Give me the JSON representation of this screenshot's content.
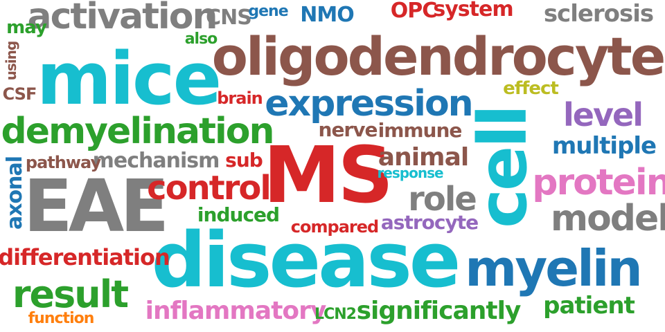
{
  "colors": {
    "brown": "#8c564b",
    "cyan": "#17becf",
    "red": "#d62728",
    "blue": "#1f77b4",
    "green": "#2ca02c",
    "gray": "#7f7f7f",
    "purple": "#9467bd",
    "pink": "#e377c2",
    "olive": "#bcbd22",
    "orange": "#ff7f0e"
  },
  "words": [
    {
      "text": "oligodendrocyte",
      "color": "brown"
    },
    {
      "text": "mice",
      "color": "cyan"
    },
    {
      "text": "disease",
      "color": "cyan"
    },
    {
      "text": "MS",
      "color": "red"
    },
    {
      "text": "cell",
      "color": "cyan"
    },
    {
      "text": "EAE",
      "color": "gray"
    },
    {
      "text": "myelin",
      "color": "blue"
    },
    {
      "text": "demyelination",
      "color": "green"
    },
    {
      "text": "expression",
      "color": "blue"
    },
    {
      "text": "activation",
      "color": "gray"
    },
    {
      "text": "control",
      "color": "red"
    },
    {
      "text": "result",
      "color": "green"
    },
    {
      "text": "protein",
      "color": "pink"
    },
    {
      "text": "model",
      "color": "gray"
    },
    {
      "text": "level",
      "color": "purple"
    },
    {
      "text": "role",
      "color": "gray"
    },
    {
      "text": "sclerosis",
      "color": "gray"
    },
    {
      "text": "differentiation",
      "color": "red"
    },
    {
      "text": "inflammatory",
      "color": "pink"
    },
    {
      "text": "significantly",
      "color": "green"
    },
    {
      "text": "patient",
      "color": "green"
    },
    {
      "text": "animal",
      "color": "brown"
    },
    {
      "text": "multiple",
      "color": "blue"
    },
    {
      "text": "mechanism",
      "color": "gray"
    },
    {
      "text": "axonal",
      "color": "blue"
    },
    {
      "text": "OPC",
      "color": "red"
    },
    {
      "text": "system",
      "color": "red"
    },
    {
      "text": "NMO",
      "color": "blue"
    },
    {
      "text": "CNS",
      "color": "gray"
    },
    {
      "text": "astrocyte",
      "color": "purple"
    },
    {
      "text": "induced",
      "color": "green"
    },
    {
      "text": "immune",
      "color": "brown"
    },
    {
      "text": "nerve",
      "color": "brown"
    },
    {
      "text": "effect",
      "color": "olive"
    },
    {
      "text": "may",
      "color": "green"
    },
    {
      "text": "compared",
      "color": "red"
    },
    {
      "text": "pathway",
      "color": "brown"
    },
    {
      "text": "sub",
      "color": "red"
    },
    {
      "text": "brain",
      "color": "red"
    },
    {
      "text": "CSF",
      "color": "brown"
    },
    {
      "text": "function",
      "color": "orange"
    },
    {
      "text": "LCN2",
      "color": "green"
    },
    {
      "text": "response",
      "color": "cyan"
    },
    {
      "text": "gene",
      "color": "blue"
    },
    {
      "text": "also",
      "color": "green"
    },
    {
      "text": "using",
      "color": "brown"
    }
  ]
}
